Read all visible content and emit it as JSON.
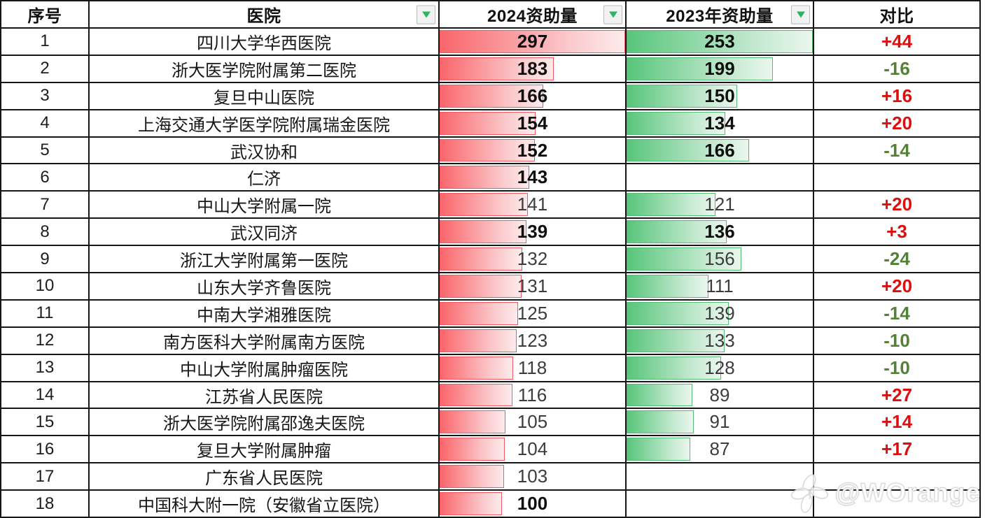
{
  "table": {
    "columns": [
      {
        "key": "seq",
        "label": "序号",
        "filter": false
      },
      {
        "key": "hospital",
        "label": "医院",
        "filter": true
      },
      {
        "key": "y2024",
        "label": "2024资助量",
        "filter": true
      },
      {
        "key": "y2023",
        "label": "2023年资助量",
        "filter": true
      },
      {
        "key": "diff",
        "label": "对比",
        "filter": false
      }
    ],
    "max_2024": 297,
    "max_2023": 253,
    "rows": [
      {
        "seq": "1",
        "hospital": "四川大学华西医院",
        "y2024": 297,
        "y2024_bold": true,
        "y2023": 253,
        "y2023_bold": true,
        "diff": "+44",
        "diff_color": "red"
      },
      {
        "seq": "2",
        "hospital": "浙大医学院附属第二医院",
        "y2024": 183,
        "y2024_bold": true,
        "y2023": 199,
        "y2023_bold": true,
        "diff": "-16",
        "diff_color": "green"
      },
      {
        "seq": "3",
        "hospital": "复旦中山医院",
        "y2024": 166,
        "y2024_bold": true,
        "y2023": 150,
        "y2023_bold": true,
        "diff": "+16",
        "diff_color": "red"
      },
      {
        "seq": "4",
        "hospital": "上海交通大学医学院附属瑞金医院",
        "y2024": 154,
        "y2024_bold": true,
        "y2023": 134,
        "y2023_bold": true,
        "diff": "+20",
        "diff_color": "red"
      },
      {
        "seq": "5",
        "hospital": "武汉协和",
        "y2024": 152,
        "y2024_bold": true,
        "y2023": 166,
        "y2023_bold": true,
        "diff": "-14",
        "diff_color": "green"
      },
      {
        "seq": "6",
        "hospital": "仁济",
        "y2024": 143,
        "y2024_bold": true,
        "y2023": null,
        "y2023_bold": false,
        "diff": "",
        "diff_color": ""
      },
      {
        "seq": "7",
        "hospital": "中山大学附属一院",
        "y2024": 141,
        "y2024_bold": false,
        "y2023": 121,
        "y2023_bold": false,
        "diff": "+20",
        "diff_color": "red"
      },
      {
        "seq": "8",
        "hospital": "武汉同济",
        "y2024": 139,
        "y2024_bold": true,
        "y2023": 136,
        "y2023_bold": true,
        "diff": "+3",
        "diff_color": "red"
      },
      {
        "seq": "9",
        "hospital": "浙江大学附属第一医院",
        "y2024": 132,
        "y2024_bold": false,
        "y2023": 156,
        "y2023_bold": false,
        "diff": "-24",
        "diff_color": "green"
      },
      {
        "seq": "10",
        "hospital": "山东大学齐鲁医院",
        "y2024": 131,
        "y2024_bold": false,
        "y2023": 111,
        "y2023_bold": false,
        "diff": "+20",
        "diff_color": "red"
      },
      {
        "seq": "11",
        "hospital": "中南大学湘雅医院",
        "y2024": 125,
        "y2024_bold": false,
        "y2023": 139,
        "y2023_bold": false,
        "diff": "-14",
        "diff_color": "green"
      },
      {
        "seq": "12",
        "hospital": "南方医科大学附属南方医院",
        "y2024": 123,
        "y2024_bold": false,
        "y2023": 133,
        "y2023_bold": false,
        "diff": "-10",
        "diff_color": "green"
      },
      {
        "seq": "13",
        "hospital": "中山大学附属肿瘤医院",
        "y2024": 118,
        "y2024_bold": false,
        "y2023": 128,
        "y2023_bold": false,
        "diff": "-10",
        "diff_color": "green"
      },
      {
        "seq": "14",
        "hospital": "江苏省人民医院",
        "y2024": 116,
        "y2024_bold": false,
        "y2023": 89,
        "y2023_bold": false,
        "diff": "+27",
        "diff_color": "red"
      },
      {
        "seq": "15",
        "hospital": "浙大医学院附属邵逸夫医院",
        "y2024": 105,
        "y2024_bold": false,
        "y2023": 91,
        "y2023_bold": false,
        "diff": "+14",
        "diff_color": "red"
      },
      {
        "seq": "16",
        "hospital": "复旦大学附属肿瘤",
        "y2024": 104,
        "y2024_bold": false,
        "y2023": 87,
        "y2023_bold": false,
        "diff": "+17",
        "diff_color": "red"
      },
      {
        "seq": "17",
        "hospital": "广东省人民医院",
        "y2024": 103,
        "y2024_bold": false,
        "y2023": null,
        "y2023_bold": false,
        "diff": "",
        "diff_color": ""
      },
      {
        "seq": "18",
        "hospital": "中国科大附一院（安徽省立医院）",
        "y2024": 100,
        "y2024_bold": true,
        "y2023": null,
        "y2023_bold": false,
        "diff": "",
        "diff_color": ""
      }
    ]
  },
  "colors": {
    "bar_red_solid": "#f9666b",
    "bar_red_border": "#f1585f",
    "bar_green_solid": "#58c57b",
    "bar_green_border": "#54bb73",
    "diff_positive": "#df0e0e",
    "diff_negative": "#538135",
    "grid_line": "#161616",
    "filter_triangle": "#2eb360"
  },
  "icons": {
    "filter": "filter-dropdown-icon",
    "watermark_logo": "leaf-flower-icon"
  },
  "watermark": {
    "text": "@WOrange"
  }
}
